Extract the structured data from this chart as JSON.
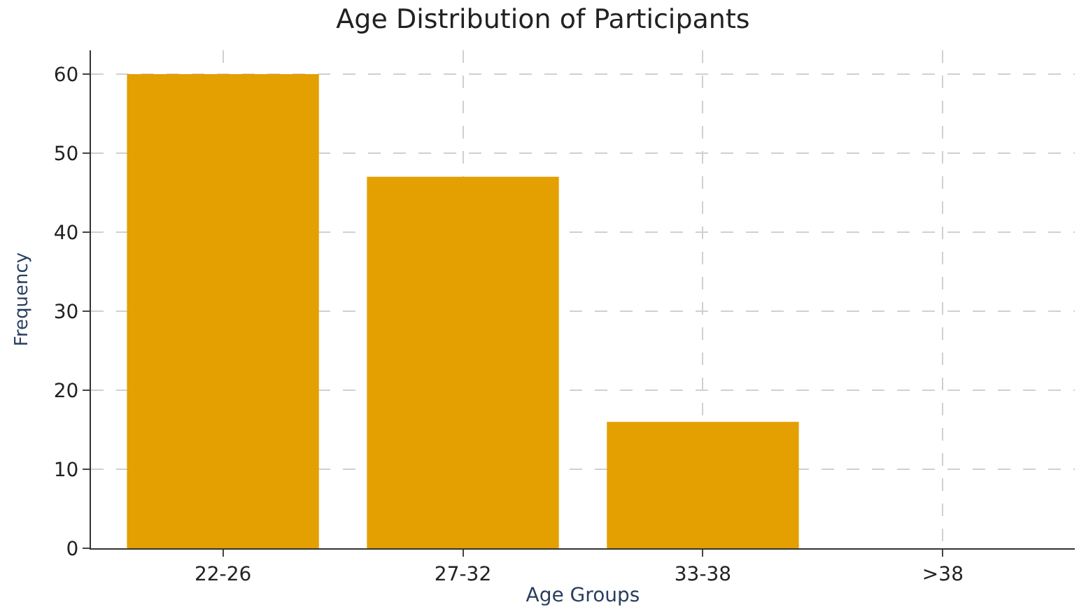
{
  "chart_data": {
    "type": "bar",
    "title": "Age Distribution of Participants",
    "xlabel": "Age Groups",
    "ylabel": "Frequency",
    "categories": [
      "22-26",
      "27-32",
      "33-38",
      ">38"
    ],
    "values": [
      60,
      47,
      16,
      0
    ],
    "color": "#e3a000",
    "ylim": [
      0,
      63
    ],
    "yticks": [
      0,
      10,
      20,
      30,
      40,
      50,
      60
    ],
    "grid": true
  }
}
